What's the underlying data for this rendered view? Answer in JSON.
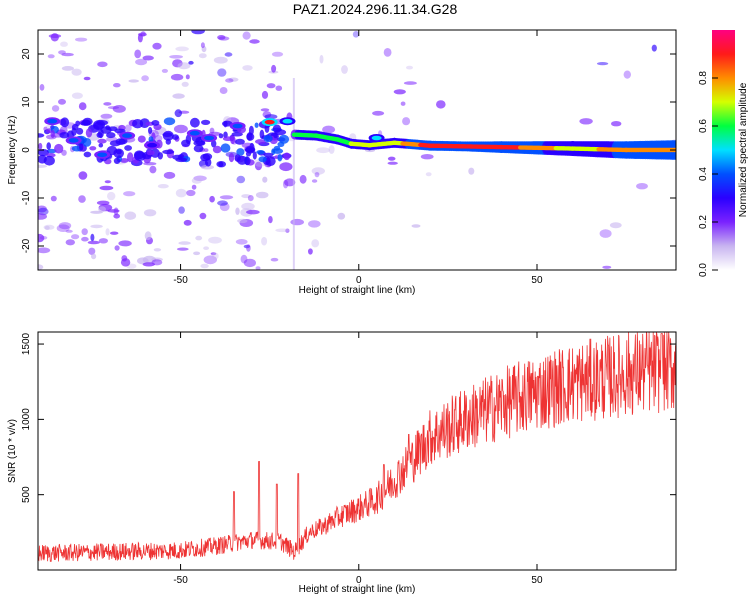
{
  "title": "PAZ1.2024.296.11.34.G28",
  "chart_data": [
    {
      "type": "heatmap",
      "title": "PAZ1.2024.296.11.34.G28",
      "xlabel": "Height of straight line (km)",
      "ylabel": "Frequency (Hz)",
      "xlim": [
        -90,
        89
      ],
      "ylim": [
        -25,
        25
      ],
      "xticks": [
        -50,
        0,
        50
      ],
      "yticks": [
        -20,
        -10,
        0,
        10,
        20
      ],
      "colorbar": {
        "label": "Normalized spectral amplitude",
        "range": [
          0,
          1
        ],
        "ticks": [
          "0.0",
          "0.2",
          "0.4",
          "0.6",
          "0.8"
        ],
        "colors": [
          "#ffffff",
          "#c8b4f0",
          "#7a22ff",
          "#2a00ff",
          "#0050ff",
          "#00e0ff",
          "#00ff40",
          "#d4ff00",
          "#ff8c00",
          "#ff1a1a",
          "#ff0080"
        ]
      },
      "ridge": [
        {
          "x": -18,
          "y": 3.2,
          "amp": 0.55
        },
        {
          "x": -12,
          "y": 3.0,
          "amp": 0.6
        },
        {
          "x": -6,
          "y": 2.2,
          "amp": 0.6
        },
        {
          "x": -2,
          "y": 1.3,
          "amp": 0.65
        },
        {
          "x": 3,
          "y": 1.0,
          "amp": 0.7
        },
        {
          "x": 10,
          "y": 1.5,
          "amp": 0.7
        },
        {
          "x": 20,
          "y": 0.9,
          "amp": 0.9
        },
        {
          "x": 40,
          "y": 0.6,
          "amp": 0.9
        },
        {
          "x": 60,
          "y": 0.3,
          "amp": 0.7
        },
        {
          "x": 75,
          "y": 0.0,
          "amp": 0.8
        },
        {
          "x": 89,
          "y": 0.0,
          "amp": 0.8
        }
      ],
      "patches": [
        {
          "x": -86,
          "y": 6,
          "amp": 0.35
        },
        {
          "x": -80,
          "y": 2,
          "amp": 0.35
        },
        {
          "x": -72,
          "y": -1,
          "amp": 0.35
        },
        {
          "x": -65,
          "y": 3,
          "amp": 0.4
        },
        {
          "x": -58,
          "y": 1,
          "amp": 0.3
        },
        {
          "x": -46,
          "y": 3.5,
          "amp": 0.35
        },
        {
          "x": -42,
          "y": 2.5,
          "amp": 0.35
        },
        {
          "x": -34,
          "y": 5,
          "amp": 0.4
        },
        {
          "x": -25,
          "y": 5.8,
          "amp": 0.9
        },
        {
          "x": -20,
          "y": 6,
          "amp": 0.5
        },
        {
          "x": 5,
          "y": 2.5,
          "amp": 0.5
        }
      ]
    },
    {
      "type": "line",
      "xlabel": "Height of straight line (km)",
      "ylabel": "SNR (10 * v/v)",
      "xlim": [
        -90,
        89
      ],
      "ylim": [
        0,
        1580
      ],
      "xticks": [
        -50,
        0,
        50
      ],
      "yticks": [
        500,
        1000,
        1500
      ],
      "color": "#ee3333",
      "trend": {
        "x": [
          -90,
          -70,
          -50,
          -40,
          -30,
          -22,
          -18,
          -14,
          -10,
          -5,
          0,
          5,
          10,
          15,
          20,
          30,
          40,
          50,
          60,
          70,
          80,
          89
        ],
        "y": [
          110,
          120,
          130,
          160,
          200,
          190,
          120,
          250,
          290,
          360,
          410,
          470,
          600,
          730,
          880,
          1000,
          1100,
          1180,
          1240,
          1280,
          1320,
          1340
        ]
      },
      "spikes": [
        {
          "x": -28,
          "y": 720
        },
        {
          "x": -17,
          "y": 640
        },
        {
          "x": -23,
          "y": 570
        },
        {
          "x": -35,
          "y": 520
        },
        {
          "x": 7,
          "y": 700
        },
        {
          "x": 14,
          "y": 900
        },
        {
          "x": 85,
          "y": 1570
        }
      ]
    }
  ]
}
